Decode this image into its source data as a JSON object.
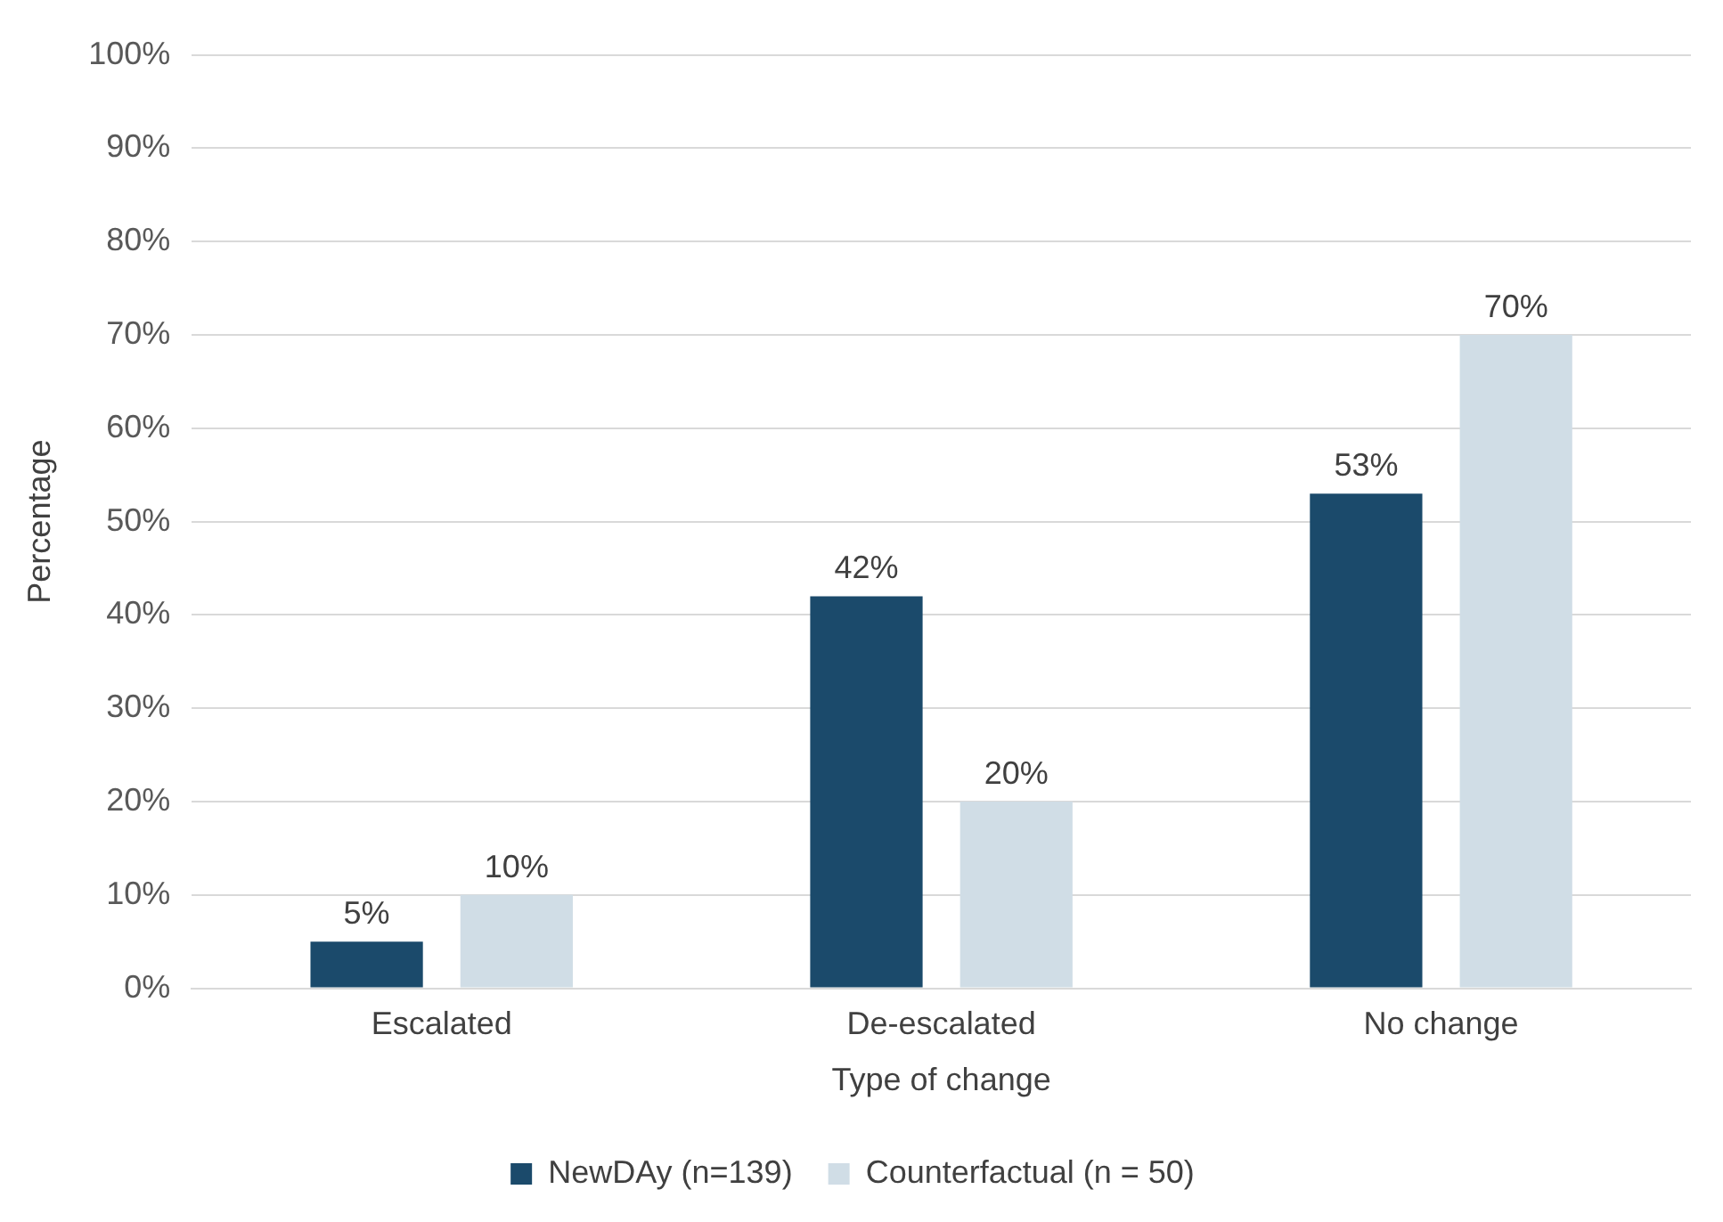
{
  "chart_data": {
    "type": "bar",
    "xlabel": "Type of change",
    "ylabel": "Percentage",
    "categories": [
      "Escalated",
      "De-escalated",
      "No change"
    ],
    "series": [
      {
        "name": "NewDAy (n=139)",
        "color": "#1b4a6b",
        "values": [
          5,
          42,
          53
        ],
        "value_labels": [
          "5%",
          "42%",
          "53%"
        ]
      },
      {
        "name": "Counterfactual (n = 50)",
        "color": "#d0dde6",
        "values": [
          10,
          20,
          70
        ],
        "value_labels": [
          "10%",
          "20%",
          "70%"
        ]
      }
    ],
    "ylim": [
      0,
      100
    ],
    "yticks": [
      {
        "value": 0,
        "label": "0%"
      },
      {
        "value": 10,
        "label": "10%"
      },
      {
        "value": 20,
        "label": "20%"
      },
      {
        "value": 30,
        "label": "30%"
      },
      {
        "value": 40,
        "label": "40%"
      },
      {
        "value": 50,
        "label": "50%"
      },
      {
        "value": 60,
        "label": "60%"
      },
      {
        "value": 70,
        "label": "70%"
      },
      {
        "value": 80,
        "label": "80%"
      },
      {
        "value": 90,
        "label": "90%"
      },
      {
        "value": 100,
        "label": "100%"
      }
    ],
    "grid": "y",
    "legend": "bottom"
  }
}
